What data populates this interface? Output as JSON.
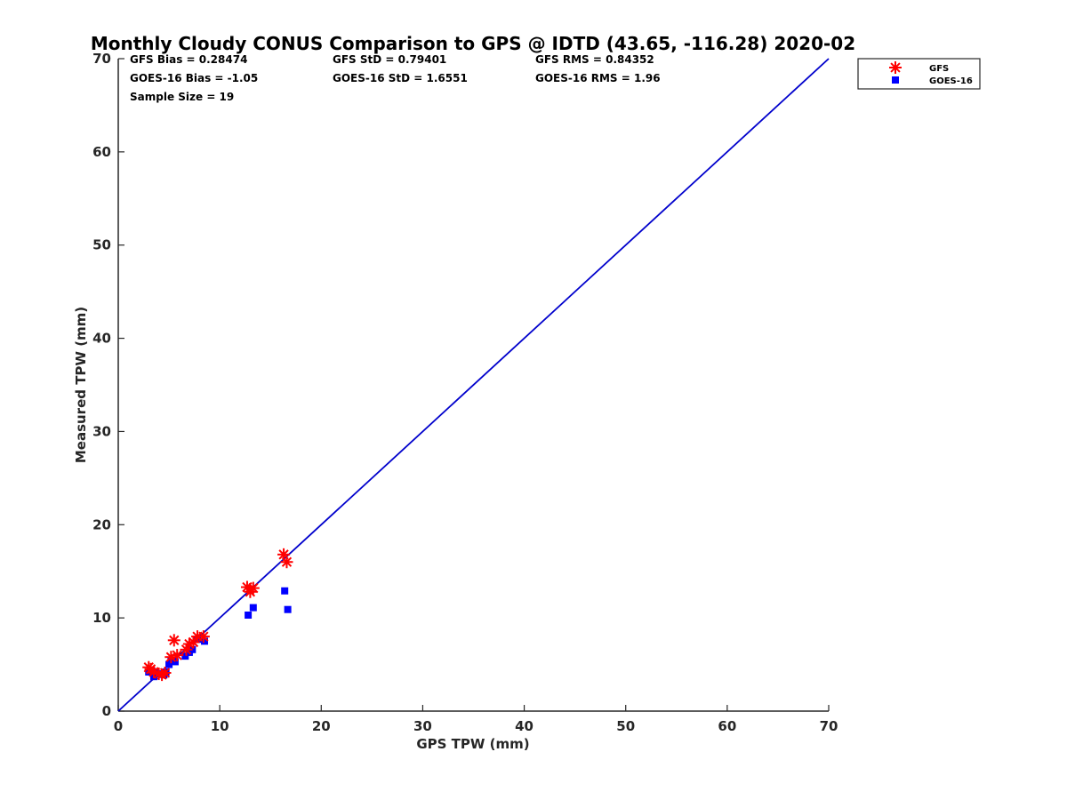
{
  "chart_data": {
    "type": "scatter",
    "title": "Monthly Cloudy CONUS Comparison to GPS @ IDTD (43.65, -116.28) 2020-02",
    "xlabel": "GPS TPW (mm)",
    "ylabel": "Measured TPW (mm)",
    "xlim": [
      0,
      70
    ],
    "ylim": [
      0,
      70
    ],
    "xticks": [
      "0",
      "10",
      "20",
      "30",
      "40",
      "50",
      "60",
      "70"
    ],
    "yticks": [
      "0",
      "10",
      "20",
      "30",
      "40",
      "50",
      "60",
      "70"
    ],
    "grid": false,
    "legend_position": "top-right",
    "stats": [
      [
        "GFS Bias = 0.28474",
        "GFS StD = 0.79401",
        "GFS RMS = 0.84352"
      ],
      [
        "GOES-16 Bias = -1.05",
        "GOES-16 StD = 1.6551",
        "GOES-16 RMS = 1.96"
      ],
      [
        "Sample Size = 19"
      ]
    ],
    "reference_line": {
      "from": [
        0,
        0
      ],
      "to": [
        70,
        70
      ],
      "color": "#0000cc"
    },
    "series": [
      {
        "name": "GFS",
        "marker": "asterisk",
        "color": "#ff0000",
        "points": [
          [
            3.0,
            4.7
          ],
          [
            3.2,
            4.5
          ],
          [
            3.5,
            4.2
          ],
          [
            4.0,
            4.0
          ],
          [
            4.6,
            4.1
          ],
          [
            5.2,
            5.8
          ],
          [
            5.5,
            7.6
          ],
          [
            5.8,
            6.0
          ],
          [
            6.7,
            6.6
          ],
          [
            7.0,
            7.2
          ],
          [
            7.4,
            7.4
          ],
          [
            7.8,
            8.0
          ],
          [
            8.4,
            8.0
          ],
          [
            12.7,
            13.3
          ],
          [
            13.0,
            12.8
          ],
          [
            13.3,
            13.2
          ],
          [
            16.3,
            16.8
          ],
          [
            16.6,
            16.0
          ],
          [
            4.3,
            3.9
          ]
        ]
      },
      {
        "name": "GOES-16",
        "marker": "square",
        "color": "#0000ff",
        "points": [
          [
            3.0,
            4.2
          ],
          [
            3.3,
            4.3
          ],
          [
            3.5,
            3.7
          ],
          [
            4.0,
            4.0
          ],
          [
            4.5,
            3.9
          ],
          [
            4.7,
            4.2
          ],
          [
            5.2,
            5.4
          ],
          [
            5.6,
            5.3
          ],
          [
            6.6,
            5.9
          ],
          [
            7.0,
            6.3
          ],
          [
            7.3,
            6.6
          ],
          [
            7.8,
            7.7
          ],
          [
            8.5,
            7.5
          ],
          [
            12.8,
            10.3
          ],
          [
            13.3,
            11.1
          ],
          [
            16.4,
            12.9
          ],
          [
            16.7,
            10.9
          ],
          [
            3.7,
            4.1
          ],
          [
            5.0,
            5.0
          ]
        ]
      }
    ]
  }
}
